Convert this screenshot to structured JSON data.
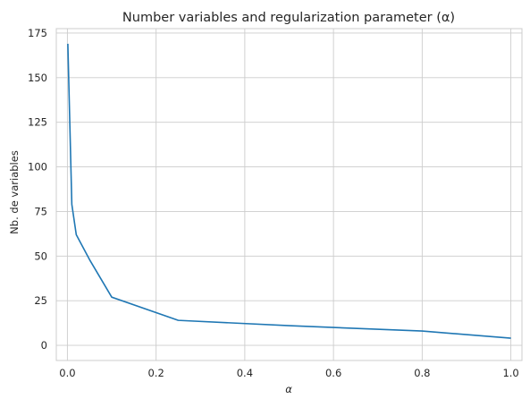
{
  "chart_data": {
    "type": "line",
    "title": "Number variables and regularization parameter (α)",
    "xlabel": "α",
    "ylabel": "Nb. de variables",
    "xlim": [
      -0.025,
      1.025
    ],
    "ylim": [
      -8.5,
      177.5
    ],
    "xticks": [
      0.0,
      0.2,
      0.4,
      0.6,
      0.8,
      1.0
    ],
    "xtick_labels": [
      "0.0",
      "0.2",
      "0.4",
      "0.6",
      "0.8",
      "1.0"
    ],
    "yticks": [
      0,
      25,
      50,
      75,
      100,
      125,
      150,
      175
    ],
    "ytick_labels": [
      "0",
      "25",
      "50",
      "75",
      "100",
      "125",
      "150",
      "175"
    ],
    "grid": true,
    "color": "#1f77b4",
    "series": [
      {
        "x": [
          0.001,
          0.01,
          0.02,
          0.05,
          0.1,
          0.25,
          0.5,
          0.8,
          1.0
        ],
        "y": [
          169,
          79,
          62,
          48,
          27,
          14,
          11,
          8,
          4
        ]
      }
    ]
  }
}
